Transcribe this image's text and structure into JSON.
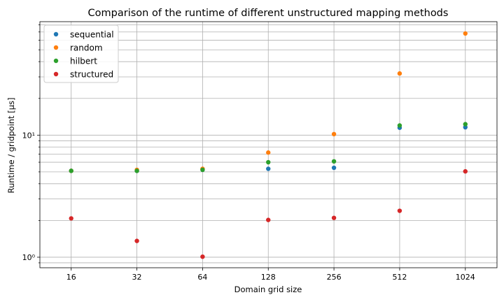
{
  "chart_data": {
    "type": "scatter",
    "title": "Comparison of the runtime of different unstructured mapping methods",
    "xlabel": "Domain grid size",
    "ylabel": "Runtime / gridpoint [µs]",
    "x_scale": "log2",
    "y_scale": "log10",
    "categories": [
      "16",
      "32",
      "64",
      "128",
      "256",
      "512",
      "1024"
    ],
    "x": [
      16,
      32,
      64,
      128,
      256,
      512,
      1024
    ],
    "xlim": [
      11.5,
      1430
    ],
    "ylim": [
      0.82,
      85
    ],
    "y_major_ticks": [
      {
        "value": 1,
        "label": "10⁰"
      },
      {
        "value": 10,
        "label": "10¹"
      }
    ],
    "grid": true,
    "legend_position": "top-left",
    "series": [
      {
        "name": "sequential",
        "color": "#1f77b4",
        "values": [
          5.1,
          5.1,
          5.2,
          5.3,
          5.4,
          11.5,
          11.6
        ]
      },
      {
        "name": "random",
        "color": "#ff7f0e",
        "values": [
          5.1,
          5.2,
          5.3,
          7.2,
          10.2,
          32.0,
          68.0
        ]
      },
      {
        "name": "hilbert",
        "color": "#2ca02c",
        "values": [
          5.1,
          5.1,
          5.2,
          6.0,
          6.1,
          12.0,
          12.3
        ]
      },
      {
        "name": "structured",
        "color": "#d62728",
        "values": [
          2.08,
          1.36,
          1.01,
          2.02,
          2.1,
          2.4,
          5.05
        ]
      }
    ]
  }
}
